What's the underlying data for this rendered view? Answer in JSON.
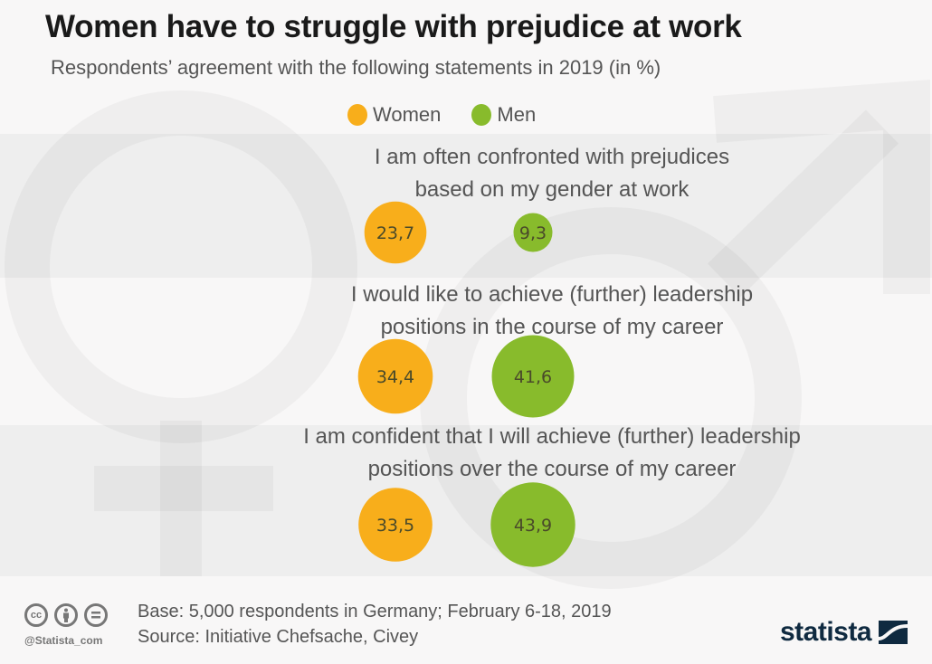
{
  "header": {
    "title": "Women have to struggle with prejudice at work",
    "subtitle": "Respondents’ agreement with the following statements in 2019 (in %)"
  },
  "legend": [
    {
      "label": "Women",
      "color": "#f8ae1b"
    },
    {
      "label": "Men",
      "color": "#88bb2c"
    }
  ],
  "chart_data": {
    "type": "bubble",
    "title": "Women have to struggle with prejudice at work",
    "subtitle": "Respondents’ agreement with the following statements in 2019 (in %)",
    "unit": "%",
    "decimal_separator": ",",
    "legend_position": "top-center",
    "categories": [
      "I am often confronted with prejudices based on my gender at work",
      "I would like to achieve (further) leadership positions in the course of my career",
      "I am confident that I will achieve (further) leadership positions over the course of my career"
    ],
    "category_lines": [
      [
        "I am often confronted with prejudices",
        "based on my gender at work"
      ],
      [
        "I would like to achieve (further) leadership",
        "positions in the course of my career"
      ],
      [
        "I am confident that I will achieve (further) leadership",
        "positions over the course of my career"
      ]
    ],
    "series": [
      {
        "name": "Women",
        "color": "#f8ae1b",
        "values": [
          23.7,
          34.4,
          33.5
        ],
        "labels": [
          "23,7",
          "34,4",
          "33,5"
        ]
      },
      {
        "name": "Men",
        "color": "#88bb2c",
        "values": [
          9.3,
          41.6,
          43.9
        ],
        "labels": [
          "9,3",
          "41,6",
          "43,9"
        ]
      }
    ]
  },
  "footer": {
    "base": "Base: 5,000 respondents in Germany; February 6-18, 2019",
    "source": "Source: Initiative Chefsache, Civey",
    "handle": "@Statista_com",
    "license_icons": [
      "cc-icon",
      "by-icon",
      "nd-icon"
    ],
    "logo": "statista"
  }
}
